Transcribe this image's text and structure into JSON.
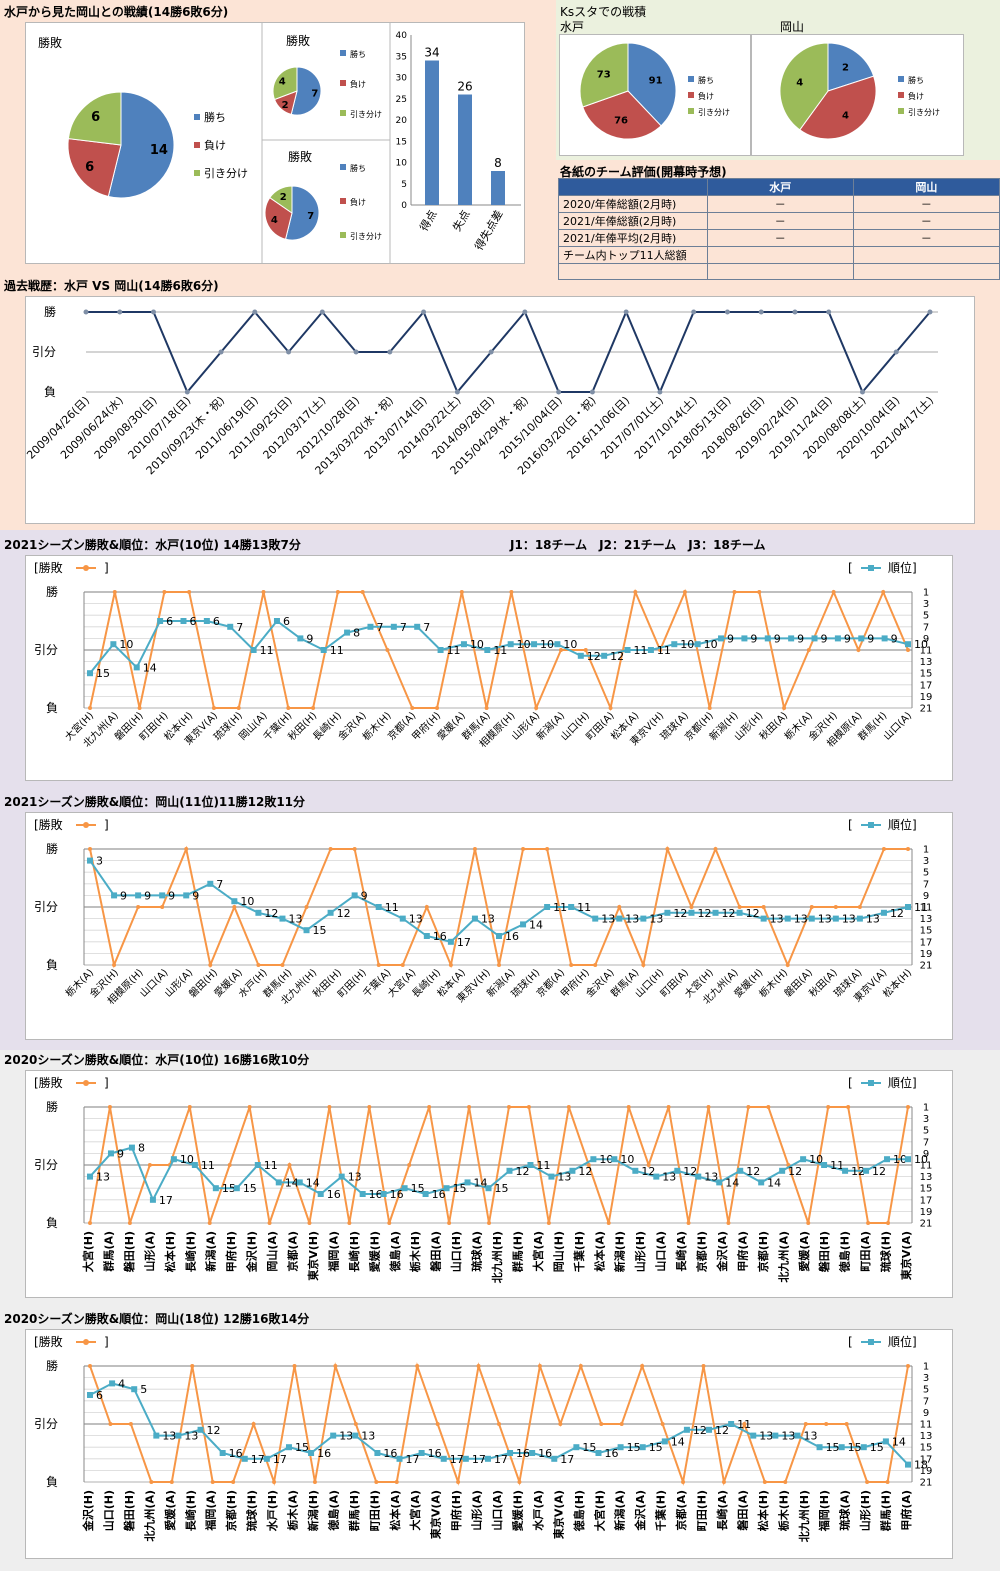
{
  "colors": {
    "peach": "#fce4d6",
    "green": "#ebf1de",
    "lavender": "#e5e0ec",
    "gray": "#eeeeee",
    "win": "#4f81bd",
    "lose": "#c0504d",
    "draw": "#9bbb59",
    "history_line": "#1f3864",
    "result_line": "#f79646",
    "rank_line": "#4bacc6"
  },
  "summary": {
    "title": "水戸から見た岡山との戦績(14勝6敗6分)",
    "pie_main": {
      "label": "勝敗",
      "values": [
        14,
        6,
        6
      ],
      "legend": [
        "勝ち",
        "負け",
        "引き分け"
      ]
    },
    "pie_home": {
      "label": "勝敗",
      "values": [
        7,
        2,
        4
      ],
      "legend": [
        "勝ち",
        "負け",
        "引き分け"
      ]
    },
    "pie_away": {
      "label": "勝敗",
      "values": [
        7,
        4,
        2
      ],
      "legend": [
        "勝ち",
        "負け",
        "引き分け"
      ]
    },
    "goals_bar": {
      "categories": [
        "得点",
        "失点",
        "得失点差"
      ],
      "values": [
        34,
        26,
        8
      ],
      "ymax": 40,
      "ticks": [
        "0",
        "5",
        "10",
        "15",
        "20",
        "25",
        "30",
        "35",
        "40"
      ]
    }
  },
  "ks": {
    "title": "Ksスタでの戦積",
    "mito": {
      "label": "水戸",
      "values": [
        91,
        76,
        73
      ],
      "legend": [
        "勝ち",
        "負け",
        "引き分け"
      ]
    },
    "okayama": {
      "label": "岡山",
      "values": [
        2,
        4,
        4
      ],
      "legend": [
        "勝ち",
        "負け",
        "引き分け"
      ]
    }
  },
  "evaluation": {
    "title": "各紙のチーム評価(開幕時予想)",
    "headers": [
      "",
      "水戸",
      "岡山"
    ],
    "rows": [
      {
        "label": "2020/年俸総額(2月時)",
        "mito": "－",
        "okayama": "－"
      },
      {
        "label": "2021/年俸総額(2月時)",
        "mito": "－",
        "okayama": "－"
      },
      {
        "label": "2021/年俸平均(2月時)",
        "mito": "－",
        "okayama": "－"
      },
      {
        "label": "チーム内トップ11人総額",
        "mito": "",
        "okayama": ""
      },
      {
        "label": "",
        "mito": "",
        "okayama": ""
      }
    ]
  },
  "history": {
    "title": "過去戦歴：水戸 VS 岡山(14勝6敗6分)",
    "ylabels": [
      "勝",
      "引分",
      "負"
    ],
    "dates": [
      "2009/04/26(日)",
      "2009/06/24(水)",
      "2009/08/30(日)",
      "2010/07/18(日)",
      "2010/09/23(木・祝)",
      "2011/06/19(日)",
      "2011/09/25(日)",
      "2012/03/17(土)",
      "2012/10/28(日)",
      "2013/03/20(水・祝)",
      "2013/07/14(日)",
      "2014/03/22(土)",
      "2014/09/28(日)",
      "2015/04/29(水・祝)",
      "2015/10/04(日)",
      "2016/03/20(日・祝)",
      "2016/11/06(日)",
      "2017/07/01(土)",
      "2017/10/14(土)",
      "2018/05/13(日)",
      "2018/08/26(日)",
      "2019/02/24(日)",
      "2019/11/24(日)",
      "2020/08/08(土)",
      "2020/10/04(日)",
      "2021/04/17(土)"
    ],
    "results": [
      1,
      1,
      1,
      -1,
      0,
      1,
      0,
      1,
      0,
      0,
      1,
      -1,
      0,
      1,
      -1,
      -1,
      1,
      -1,
      1,
      1,
      1,
      1,
      1,
      -1,
      0,
      1
    ]
  },
  "season_note": "J1：18チーム　J2：21チーム　J3：18チーム",
  "seasons": [
    {
      "title": "2021シーズン勝敗&順位：水戸(10位) 14勝13敗7分",
      "legend_result": "[勝敗",
      "legend_rank": "[",
      "legend_rank2": "順位]",
      "ylabels": [
        "勝",
        "引分",
        "負"
      ],
      "rank_ticks": [
        "1",
        "3",
        "5",
        "7",
        "9",
        "11",
        "13",
        "15",
        "17",
        "19",
        "21"
      ],
      "opponents": [
        "大宮(H)",
        "北九州(A)",
        "磐田(H)",
        "町田(H)",
        "松本(H)",
        "東京V(A)",
        "琉球(H)",
        "岡山(A)",
        "千葉(H)",
        "秋田(H)",
        "長崎(H)",
        "金沢(A)",
        "栃木(H)",
        "京都(A)",
        "甲府(H)",
        "愛媛(A)",
        "群馬(A)",
        "相模原(H)",
        "山形(A)",
        "新潟(A)",
        "山口(H)",
        "町田(A)",
        "松本(A)",
        "東京V(H)",
        "琉球(A)",
        "京都(H)",
        "新潟(H)",
        "山形(H)",
        "秋田(A)",
        "栃木(A)",
        "金沢(H)",
        "相模原(A)",
        "群馬(H)",
        "山口(A)"
      ],
      "results": [
        -1,
        1,
        -1,
        1,
        1,
        -1,
        -1,
        1,
        -1,
        -1,
        1,
        1,
        0,
        -1,
        -1,
        1,
        -1,
        1,
        -1,
        0,
        0,
        -1,
        1,
        0,
        1,
        -1,
        1,
        1,
        -1,
        0,
        1,
        0,
        1,
        0
      ],
      "ranks": [
        15,
        10,
        14,
        6,
        6,
        6,
        7,
        11,
        6,
        9,
        11,
        8,
        7,
        7,
        7,
        11,
        10,
        11,
        10,
        10,
        10,
        12,
        12,
        11,
        11,
        10,
        10,
        9,
        9,
        9,
        9,
        9,
        9,
        9,
        9,
        10
      ]
    },
    {
      "title": "2021シーズン勝敗&順位：岡山(11位)11勝12敗11分",
      "legend_result": "[勝敗",
      "legend_rank": "[",
      "legend_rank2": "順位]",
      "ylabels": [
        "勝",
        "引分",
        "負"
      ],
      "rank_ticks": [
        "1",
        "3",
        "5",
        "7",
        "9",
        "11",
        "13",
        "15",
        "17",
        "19",
        "21"
      ],
      "opponents": [
        "栃木(A)",
        "金沢(H)",
        "相模原(H)",
        "山口(A)",
        "山形(A)",
        "磐田(H)",
        "愛媛(A)",
        "水戸(H)",
        "群馬(H)",
        "北九州(H)",
        "秋田(H)",
        "町田(H)",
        "千葉(A)",
        "大宮(A)",
        "長崎(H)",
        "松本(A)",
        "東京V(H)",
        "新潟(A)",
        "琉球(H)",
        "京都(A)",
        "甲府(H)",
        "金沢(A)",
        "群馬(A)",
        "山口(H)",
        "町田(A)",
        "大宮(H)",
        "北九州(A)",
        "愛媛(H)",
        "栃木(H)",
        "磐田(A)",
        "秋田(A)",
        "琉球(A)",
        "東京V(A)",
        "松本(H)"
      ],
      "results": [
        1,
        -1,
        0,
        0,
        1,
        -1,
        0,
        -1,
        -1,
        0,
        1,
        1,
        -1,
        -1,
        0,
        -1,
        1,
        -1,
        1,
        1,
        -1,
        -1,
        0,
        -1,
        1,
        0,
        1,
        0,
        0,
        -1,
        0,
        0,
        0,
        1,
        1
      ],
      "ranks": [
        3,
        9,
        9,
        9,
        9,
        7,
        10,
        12,
        13,
        15,
        12,
        9,
        11,
        13,
        16,
        17,
        13,
        16,
        14,
        11,
        11,
        13,
        13,
        13,
        12,
        12,
        12,
        12,
        13,
        13,
        13,
        13,
        13,
        12,
        11
      ]
    },
    {
      "title": "2020シーズン勝敗&順位：水戸(10位) 16勝16敗10分",
      "legend_result": "[勝敗",
      "legend_rank": "[",
      "legend_rank2": "順位]",
      "ylabels": [
        "勝",
        "引分",
        "負"
      ],
      "rank_ticks": [
        "1",
        "3",
        "5",
        "7",
        "9",
        "11",
        "13",
        "15",
        "17",
        "19",
        "21"
      ],
      "opponents": [
        "大宮(H)",
        "群馬(A)",
        "磐田(H)",
        "山形(A)",
        "松本(H)",
        "長崎(H)",
        "新潟(A)",
        "甲府(H)",
        "金沢(H)",
        "岡山(A)",
        "京都(A)",
        "東京V(H)",
        "福岡(A)",
        "長崎(H)",
        "愛媛(H)",
        "徳島(A)",
        "栃木(H)",
        "磐田(A)",
        "山口(H)",
        "琉球(A)",
        "北九州(H)",
        "群馬(H)",
        "大宮(A)",
        "岡山(H)",
        "千葉(H)",
        "松本(A)",
        "新潟(H)",
        "山形(H)",
        "山口(A)",
        "長崎(A)",
        "京都(H)",
        "金沢(A)",
        "甲府(A)",
        "京都(H)",
        "北九州(A)",
        "愛媛(A)",
        "磐田(H)",
        "徳島(H)",
        "町田(A)",
        "琉球(H)",
        "東京V(A)"
      ],
      "results": [
        -1,
        1,
        -1,
        0,
        0,
        1,
        -1,
        0,
        1,
        -1,
        0,
        -1,
        1,
        -1,
        1,
        -1,
        0,
        1,
        -1,
        1,
        -1,
        1,
        1,
        -1,
        1,
        0,
        -1,
        1,
        0,
        1,
        -1,
        1,
        -1,
        1,
        1,
        0,
        -1,
        1,
        1,
        -1,
        -1,
        1
      ],
      "ranks": [
        13,
        9,
        8,
        17,
        10,
        11,
        15,
        15,
        11,
        14,
        14,
        16,
        13,
        16,
        16,
        15,
        16,
        15,
        14,
        15,
        12,
        11,
        13,
        12,
        10,
        10,
        12,
        13,
        12,
        13,
        14,
        12,
        14,
        12,
        10,
        11,
        12,
        12,
        10,
        10
      ]
    },
    {
      "title": "2020シーズン勝敗&順位：岡山(18位) 12勝16敗14分",
      "legend_result": "[勝敗",
      "legend_rank": "[",
      "legend_rank2": "順位]",
      "ylabels": [
        "勝",
        "引分",
        "負"
      ],
      "rank_ticks": [
        "1",
        "3",
        "5",
        "7",
        "9",
        "11",
        "13",
        "15",
        "17",
        "19",
        "21"
      ],
      "opponents": [
        "金沢(H)",
        "山口(H)",
        "磐田(H)",
        "北九州(A)",
        "愛媛(A)",
        "長崎(H)",
        "福岡(A)",
        "京都(H)",
        "琉球(H)",
        "水戸(H)",
        "栃木(A)",
        "新潟(H)",
        "徳島(A)",
        "群馬(H)",
        "町田(H)",
        "松本(A)",
        "大宮(A)",
        "東京V(A)",
        "甲府(H)",
        "山形(A)",
        "山口(A)",
        "愛媛(H)",
        "水戸(A)",
        "東京V(A)",
        "徳島(H)",
        "大宮(H)",
        "新潟(A)",
        "金沢(A)",
        "千葉(H)",
        "京都(A)",
        "町田(H)",
        "長崎(A)",
        "磐田(A)",
        "松本(H)",
        "栃木(H)",
        "北九州(H)",
        "福岡(H)",
        "琉球(A)",
        "山形(H)",
        "群馬(H)",
        "甲府(A)"
      ],
      "results": [
        1,
        0,
        0,
        -1,
        -1,
        1,
        -1,
        -1,
        0,
        -1,
        1,
        -1,
        1,
        0,
        -1,
        -1,
        1,
        0,
        -1,
        1,
        0,
        -1,
        1,
        0,
        1,
        0,
        0,
        1,
        0,
        -1,
        1,
        -1,
        0,
        -1,
        -1,
        0,
        0,
        0,
        -1,
        -1,
        1
      ],
      "ranks": [
        6,
        4,
        5,
        13,
        13,
        12,
        16,
        17,
        17,
        15,
        16,
        13,
        13,
        16,
        17,
        16,
        17,
        17,
        17,
        16,
        16,
        17,
        15,
        16,
        15,
        15,
        14,
        12,
        12,
        11,
        13,
        13,
        13,
        15,
        15,
        15,
        14,
        18
      ]
    }
  ]
}
